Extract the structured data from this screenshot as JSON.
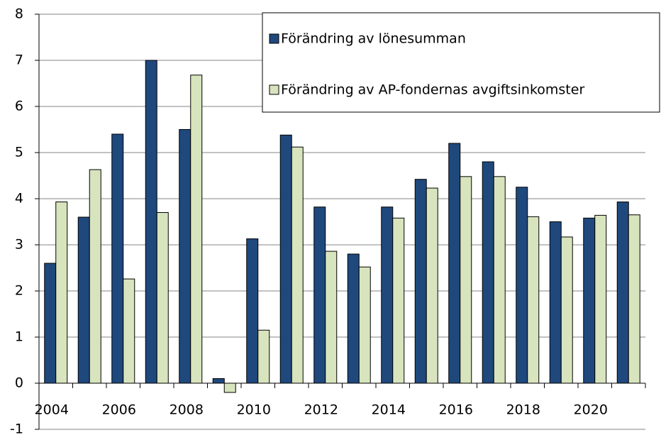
{
  "chart_data": {
    "type": "bar",
    "categories": [
      "2004",
      null,
      "2006",
      null,
      "2008",
      null,
      "2010",
      null,
      "2012",
      null,
      "2014",
      null,
      "2016",
      null,
      "2018",
      null,
      "2020",
      null
    ],
    "series": [
      {
        "name": "Förändring av lönesumman",
        "color": "#1f497d",
        "values": [
          2.6,
          3.6,
          5.4,
          7.0,
          5.5,
          0.1,
          3.13,
          5.38,
          3.82,
          2.8,
          3.82,
          4.42,
          5.2,
          4.8,
          4.25,
          3.5,
          3.58,
          3.93
        ]
      },
      {
        "name": "Förändring av AP-fondernas avgiftsinkomster",
        "color": "#d7e4bd",
        "values": [
          3.93,
          4.63,
          2.26,
          3.7,
          6.68,
          -0.2,
          1.15,
          5.12,
          2.86,
          2.52,
          3.58,
          4.23,
          4.48,
          4.48,
          3.61,
          3.17,
          3.64,
          3.65
        ]
      }
    ],
    "ylim": [
      -1,
      8
    ],
    "yticks": [
      -1,
      0,
      1,
      2,
      3,
      4,
      5,
      6,
      7,
      8
    ],
    "grid": true,
    "legend": "upper-right"
  }
}
